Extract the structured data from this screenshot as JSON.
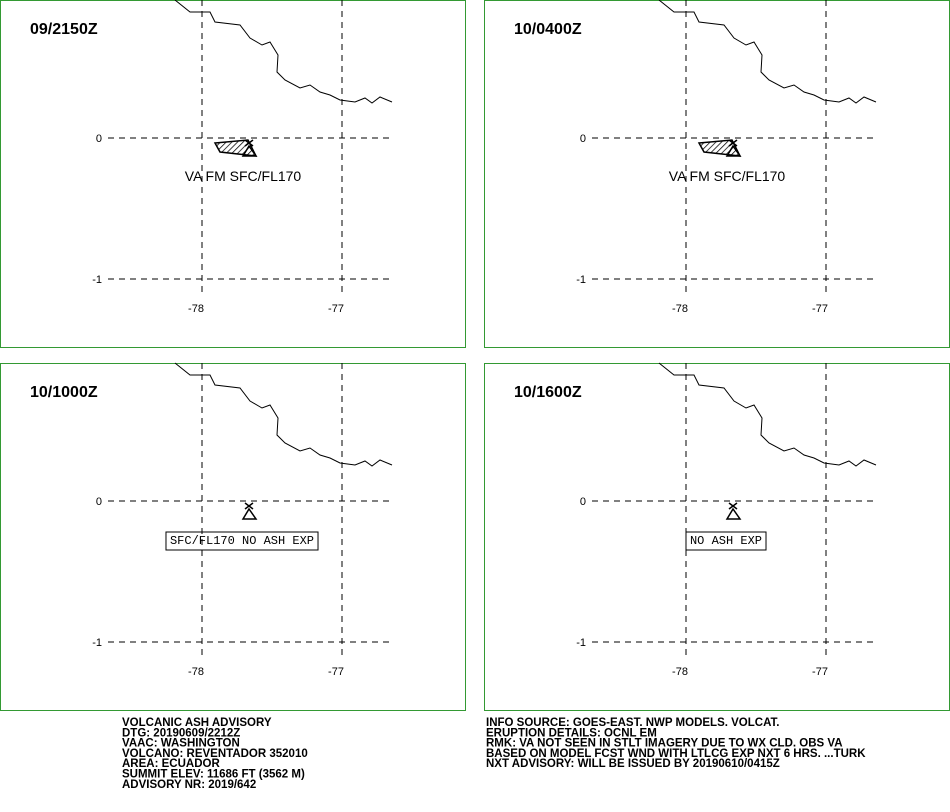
{
  "panels": [
    {
      "title": "09/2150Z",
      "annotation": "VA FM SFC/FL170",
      "annotation_boxed": false,
      "ash_area": true
    },
    {
      "title": "10/0400Z",
      "annotation": "VA FM SFC/FL170",
      "annotation_boxed": false,
      "ash_area": true
    },
    {
      "title": "10/1000Z",
      "annotation": "SFC/FL170 NO ASH EXP",
      "annotation_boxed": true,
      "ash_area": false
    },
    {
      "title": "10/1600Z",
      "annotation": "NO ASH EXP",
      "annotation_boxed": true,
      "ash_area": false
    }
  ],
  "lat_ticks": [
    0,
    -1
  ],
  "lon_ticks": [
    -78,
    -77
  ],
  "advisory_left": [
    "VOLCANIC ASH ADVISORY",
    "DTG: 20190609/2212Z",
    "VAAC: WASHINGTON",
    "VOLCANO: REVENTADOR 352010",
    "AREA: ECUADOR",
    "SUMMIT ELEV: 11686 FT (3562 M)",
    "ADVISORY NR: 2019/642"
  ],
  "advisory_right": [
    "INFO SOURCE: GOES-EAST. NWP MODELS. VOLCAT.",
    "ERUPTION DETAILS: OCNL EM",
    "RMK: VA NOT SEEN IN STLT IMAGERY DUE TO WX CLD. OBS VA",
    "BASED ON MODEL FCST WND WITH LTLCG EXP NXT 6 HRS. ...TURK",
    "NXT ADVISORY: WILL BE ISSUED BY 20190610/0415Z"
  ]
}
